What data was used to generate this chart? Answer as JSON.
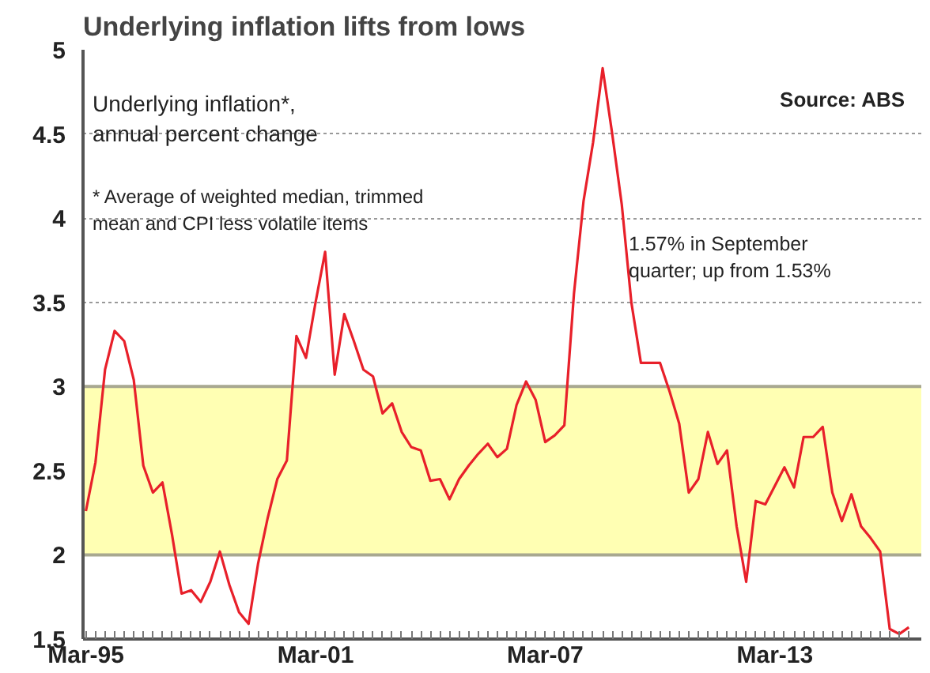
{
  "chart_data": {
    "type": "line",
    "title": "Underlying inflation lifts from lows",
    "categories": [
      "Mar-95",
      null,
      null,
      null,
      null,
      null,
      null,
      null,
      null,
      null,
      null,
      null,
      null,
      null,
      null,
      null,
      null,
      null,
      null,
      null,
      null,
      null,
      null,
      null,
      "Mar-01",
      null,
      null,
      null,
      null,
      null,
      null,
      null,
      null,
      null,
      null,
      null,
      null,
      null,
      null,
      null,
      null,
      null,
      null,
      null,
      null,
      null,
      null,
      null,
      "Mar-07",
      null,
      null,
      null,
      null,
      null,
      null,
      null,
      null,
      null,
      null,
      null,
      null,
      null,
      null,
      null,
      null,
      null,
      null,
      null,
      null,
      null,
      null,
      null,
      "Mar-13",
      null,
      null,
      null,
      null,
      null,
      null,
      null,
      null,
      null,
      null,
      null,
      null,
      null,
      null
    ],
    "series": [
      {
        "color": "#e8202a",
        "values": [
          2.26,
          2.55,
          3.1,
          3.33,
          3.27,
          3.04,
          2.53,
          2.37,
          2.43,
          2.12,
          1.77,
          1.79,
          1.72,
          1.84,
          2.02,
          1.82,
          1.66,
          1.59,
          1.95,
          2.22,
          2.45,
          2.56,
          3.3,
          3.17,
          3.5,
          3.8,
          3.07,
          3.43,
          3.27,
          3.1,
          3.06,
          2.84,
          2.9,
          2.73,
          2.64,
          2.62,
          2.44,
          2.45,
          2.33,
          2.45,
          2.53,
          2.6,
          2.66,
          2.58,
          2.63,
          2.89,
          3.03,
          2.92,
          2.67,
          2.71,
          2.77,
          3.55,
          4.1,
          4.45,
          4.89,
          4.5,
          4.08,
          3.5,
          3.14,
          3.14,
          3.14,
          2.97,
          2.78,
          2.37,
          2.45,
          2.73,
          2.54,
          2.62,
          2.17,
          1.84,
          2.32,
          2.3,
          2.41,
          2.52,
          2.4,
          2.7,
          2.7,
          2.76,
          2.37,
          2.2,
          2.36,
          2.17,
          2.1,
          2.02,
          1.56,
          1.53,
          1.57
        ]
      }
    ],
    "ylim": [
      1.5,
      5
    ],
    "yticks": [
      1.5,
      2,
      2.5,
      3,
      3.5,
      4,
      4.5,
      5
    ],
    "bands": [
      {
        "axis": "y",
        "from": 2,
        "to": 3,
        "color": "#ffffb3"
      }
    ],
    "grid": "y",
    "marker": "none",
    "line_style": "solid",
    "annotations": [
      "Underlying inflation*,\nannual percent change",
      "* Average of weighted median, trimmed\nmean and CPI less volatile items",
      "Source: ABS",
      "1.57% in September\nquarter; up from 1.53%"
    ]
  }
}
